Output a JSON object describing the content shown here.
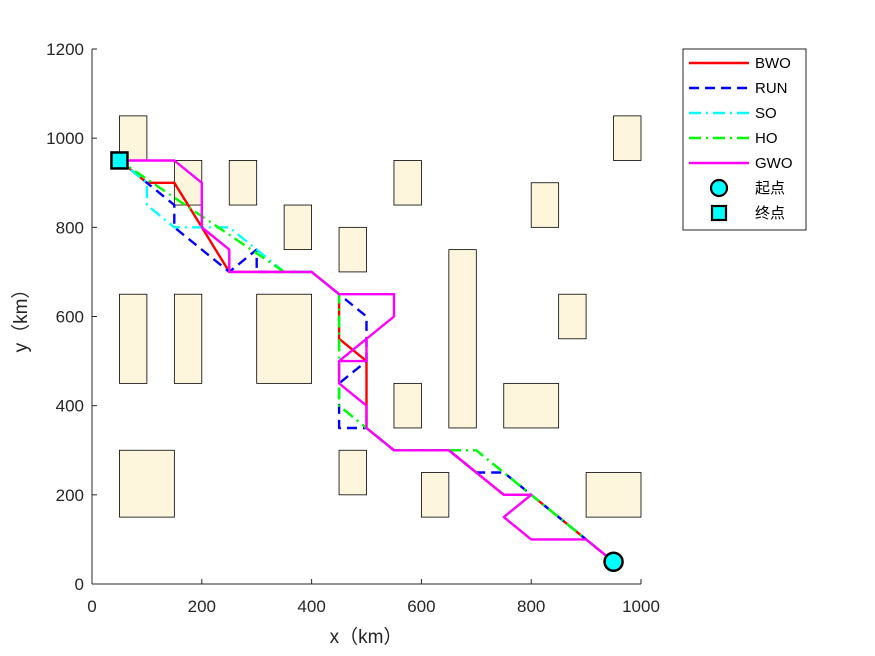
{
  "chart_data": {
    "type": "line",
    "title": "",
    "xlabel": "x（km）",
    "ylabel": "y（km）",
    "xlim": [
      0,
      1000
    ],
    "ylim": [
      0,
      1200
    ],
    "xticks": [
      "0",
      "200",
      "400",
      "600",
      "800",
      "1000"
    ],
    "yticks": [
      "0",
      "200",
      "400",
      "600",
      "800",
      "1000",
      "1200"
    ],
    "grid": false,
    "legend_position": "outside-top-right",
    "obstacle_color": "#fdf5dc",
    "obstacles": [
      {
        "x0": 50,
        "y0": 950,
        "x1": 100,
        "y1": 1050
      },
      {
        "x0": 150,
        "y0": 850,
        "x1": 200,
        "y1": 950
      },
      {
        "x0": 250,
        "y0": 850,
        "x1": 300,
        "y1": 950
      },
      {
        "x0": 350,
        "y0": 750,
        "x1": 400,
        "y1": 850
      },
      {
        "x0": 450,
        "y0": 700,
        "x1": 500,
        "y1": 800
      },
      {
        "x0": 550,
        "y0": 850,
        "x1": 600,
        "y1": 950
      },
      {
        "x0": 800,
        "y0": 800,
        "x1": 850,
        "y1": 900
      },
      {
        "x0": 950,
        "y0": 950,
        "x1": 1000,
        "y1": 1050
      },
      {
        "x0": 50,
        "y0": 450,
        "x1": 100,
        "y1": 650
      },
      {
        "x0": 150,
        "y0": 450,
        "x1": 200,
        "y1": 650
      },
      {
        "x0": 300,
        "y0": 450,
        "x1": 400,
        "y1": 650
      },
      {
        "x0": 650,
        "y0": 350,
        "x1": 700,
        "y1": 750
      },
      {
        "x0": 850,
        "y0": 550,
        "x1": 900,
        "y1": 650
      },
      {
        "x0": 550,
        "y0": 350,
        "x1": 600,
        "y1": 450
      },
      {
        "x0": 750,
        "y0": 350,
        "x1": 850,
        "y1": 450
      },
      {
        "x0": 50,
        "y0": 150,
        "x1": 150,
        "y1": 300
      },
      {
        "x0": 450,
        "y0": 200,
        "x1": 500,
        "y1": 300
      },
      {
        "x0": 600,
        "y0": 150,
        "x1": 650,
        "y1": 250
      },
      {
        "x0": 900,
        "y0": 150,
        "x1": 1000,
        "y1": 250
      }
    ],
    "series": [
      {
        "name": "BWO",
        "color": "#ff0000",
        "dash": "solid",
        "x": [
          950,
          900,
          800,
          750,
          650,
          550,
          500,
          500,
          450,
          450,
          400,
          350,
          300,
          250,
          200,
          150,
          100,
          50
        ],
        "y": [
          50,
          100,
          200,
          200,
          300,
          300,
          350,
          500,
          550,
          650,
          700,
          700,
          700,
          700,
          800,
          900,
          900,
          950
        ]
      },
      {
        "name": "RUN",
        "color": "#0000ff",
        "dash": "dashed",
        "x": [
          950,
          900,
          800,
          750,
          700,
          650,
          550,
          500,
          450,
          450,
          500,
          500,
          450,
          450,
          400,
          350,
          300,
          300,
          250,
          150,
          150,
          100,
          50
        ],
        "y": [
          50,
          100,
          200,
          250,
          250,
          300,
          300,
          350,
          350,
          450,
          500,
          600,
          650,
          650,
          700,
          700,
          700,
          750,
          700,
          800,
          850,
          900,
          950
        ]
      },
      {
        "name": "SO",
        "color": "#00ffff",
        "dash": "dashdot",
        "x": [
          950,
          850,
          700,
          650,
          550,
          500,
          450,
          450,
          400,
          350,
          300,
          250,
          200,
          150,
          100,
          100,
          50
        ],
        "y": [
          50,
          150,
          300,
          300,
          300,
          350,
          400,
          650,
          700,
          700,
          750,
          800,
          800,
          800,
          850,
          900,
          950
        ]
      },
      {
        "name": "HO",
        "color": "#00ff00",
        "dash": "dashdot",
        "x": [
          950,
          850,
          700,
          650,
          550,
          500,
          450,
          450,
          400,
          350,
          50
        ],
        "y": [
          50,
          150,
          300,
          300,
          300,
          350,
          400,
          650,
          700,
          700,
          950
        ]
      },
      {
        "name": "GWO",
        "color": "#ff00ff",
        "dash": "solid",
        "x": [
          950,
          900,
          800,
          750,
          800,
          750,
          650,
          550,
          500,
          500,
          450,
          450,
          500,
          500,
          450,
          550,
          550,
          450,
          400,
          350,
          250,
          250,
          200,
          200,
          200,
          150,
          100,
          50
        ],
        "y": [
          50,
          100,
          100,
          150,
          200,
          200,
          300,
          300,
          350,
          400,
          450,
          500,
          550,
          500,
          500,
          600,
          650,
          650,
          700,
          700,
          700,
          750,
          800,
          850,
          900,
          950,
          950,
          950
        ]
      }
    ],
    "markers": [
      {
        "name": "起点",
        "shape": "circle",
        "x": 950,
        "y": 50,
        "color": "#00ffff"
      },
      {
        "name": "终点",
        "shape": "square",
        "x": 50,
        "y": 950,
        "color": "#00ffff"
      }
    ]
  }
}
